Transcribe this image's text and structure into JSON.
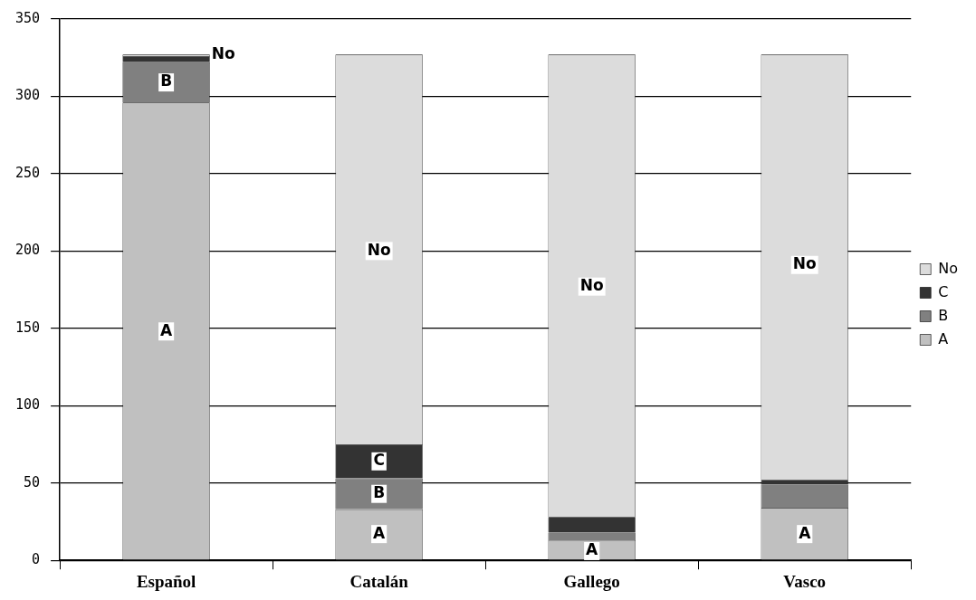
{
  "chart_data": {
    "type": "bar",
    "stacked": true,
    "categories": [
      "Español",
      "Catalán",
      "Gallego",
      "Vasco"
    ],
    "series": [
      {
        "name": "A",
        "color": "#c0c0c0",
        "values": [
          296,
          33,
          13,
          34
        ]
      },
      {
        "name": "B",
        "color": "#808080",
        "values": [
          26,
          20,
          5,
          15
        ]
      },
      {
        "name": "C",
        "color": "#333333",
        "values": [
          4,
          22,
          10,
          3
        ]
      },
      {
        "name": "No",
        "color": "#dcdcdc",
        "values": [
          1,
          252,
          299,
          275
        ]
      }
    ],
    "ylim": [
      0,
      350
    ],
    "yticks": [
      0,
      50,
      100,
      150,
      200,
      250,
      300,
      350
    ],
    "grid": "y",
    "legend": "right",
    "annotations": [
      {
        "text": "A",
        "x": "Español",
        "y": 148
      },
      {
        "text": "B",
        "x": "Español",
        "y": 309
      },
      {
        "text": "No",
        "x": "Español",
        "y": 327
      },
      {
        "text": "No",
        "x": "Catalán",
        "y": 200
      },
      {
        "text": "C",
        "x": "Catalán",
        "y": 64
      },
      {
        "text": "B",
        "x": "Catalán",
        "y": 43
      },
      {
        "text": "A",
        "x": "Catalán",
        "y": 17
      },
      {
        "text": "No",
        "x": "Gallego",
        "y": 177
      },
      {
        "text": "A",
        "x": "Gallego",
        "y": 6
      },
      {
        "text": "No",
        "x": "Vasco",
        "y": 191
      },
      {
        "text": "A",
        "x": "Vasco",
        "y": 17
      }
    ]
  }
}
